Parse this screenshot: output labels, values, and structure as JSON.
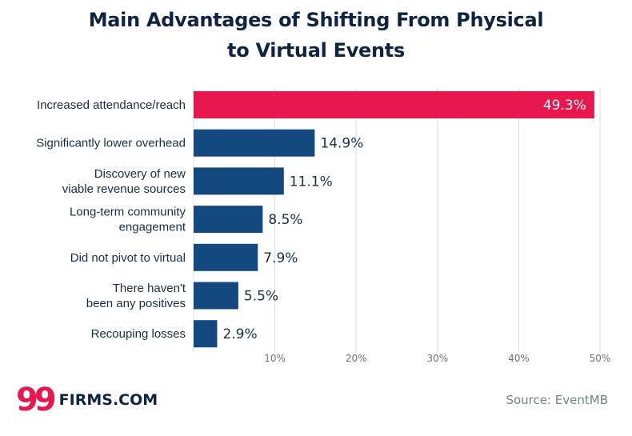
{
  "chart_data": {
    "type": "bar",
    "orientation": "horizontal",
    "title_lines": [
      "Main Advantages of Shifting From Physical",
      "to Virtual Events"
    ],
    "categories": [
      [
        "Increased attendance/reach"
      ],
      [
        "Significantly lower overhead"
      ],
      [
        "Discovery of new",
        "viable revenue sources"
      ],
      [
        "Long-term community",
        "engagement"
      ],
      [
        "Did not pivot to virtual"
      ],
      [
        "There haven't",
        "been any positives"
      ],
      [
        "Recouping losses"
      ]
    ],
    "values": [
      49.3,
      14.9,
      11.1,
      8.5,
      7.9,
      5.5,
      2.9
    ],
    "value_labels": [
      "49.3%",
      "14.9%",
      "11.1%",
      "8.5%",
      "7.9%",
      "5.5%",
      "2.9%"
    ],
    "xlim": [
      0,
      50
    ],
    "x_ticks": [
      10,
      20,
      30,
      40,
      50
    ],
    "x_tick_labels": [
      "10%",
      "20%",
      "30%",
      "40%",
      "50%"
    ],
    "grid": "vertical",
    "colors": {
      "highlight": "#e8174d",
      "bar": "#14497f",
      "grid": "#d9dde3"
    },
    "highlight_index": 0
  },
  "branding": {
    "logo_mark": "99",
    "logo_text": "FIRMS.COM",
    "source": "Source: EventMB"
  }
}
